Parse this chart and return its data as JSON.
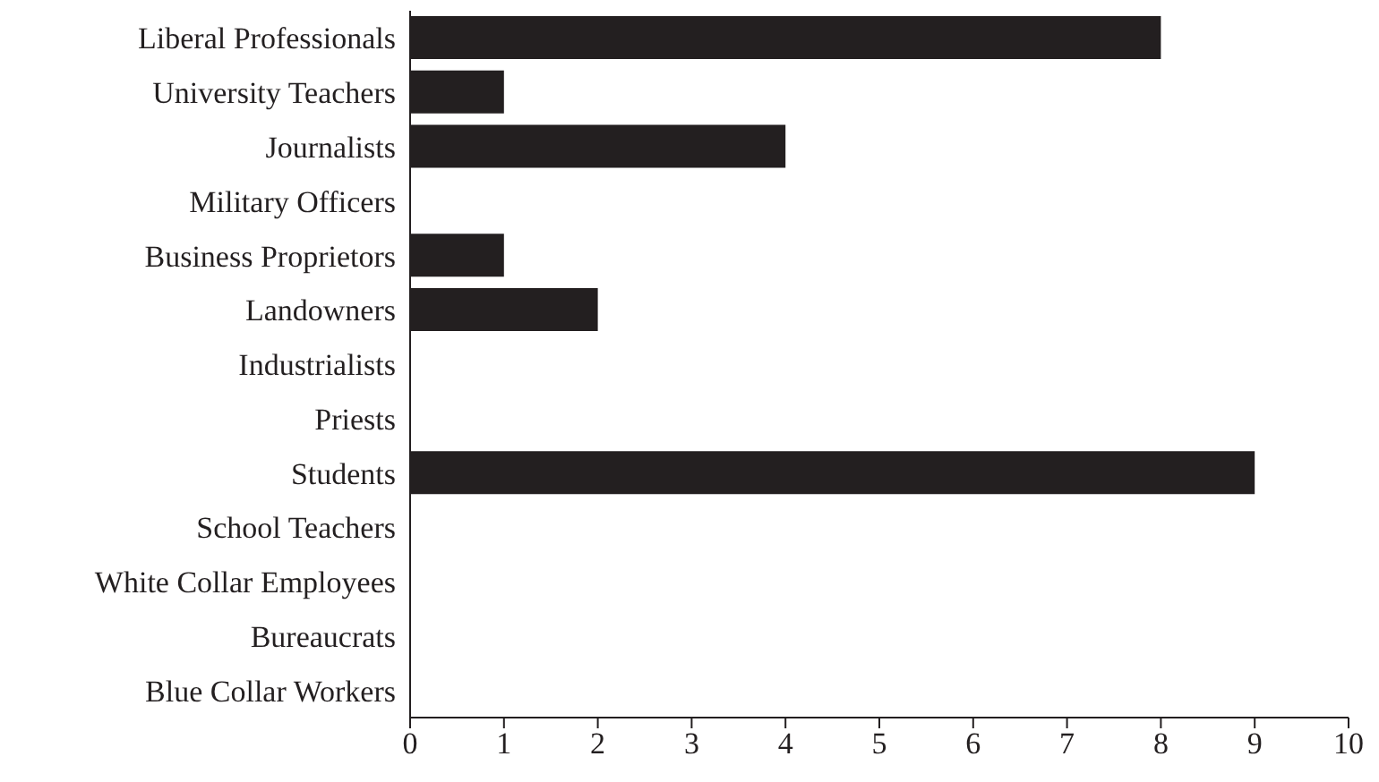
{
  "chart_data": {
    "type": "bar",
    "orientation": "horizontal",
    "categories": [
      "Liberal Professionals",
      "University Teachers",
      "Journalists",
      "Military Officers",
      "Business Proprietors",
      "Landowners",
      "Industrialists",
      "Priests",
      "Students",
      "School Teachers",
      "White Collar Employees",
      "Bureaucrats",
      "Blue Collar Workers"
    ],
    "values": [
      8,
      1,
      4,
      0,
      1,
      2,
      0,
      0,
      9,
      0,
      0,
      0,
      0
    ],
    "color": "#231f20",
    "xlim": [
      0,
      10
    ],
    "xticks": [
      0,
      1,
      2,
      3,
      4,
      5,
      6,
      7,
      8,
      9,
      10
    ],
    "grid": false,
    "legend": false
  }
}
